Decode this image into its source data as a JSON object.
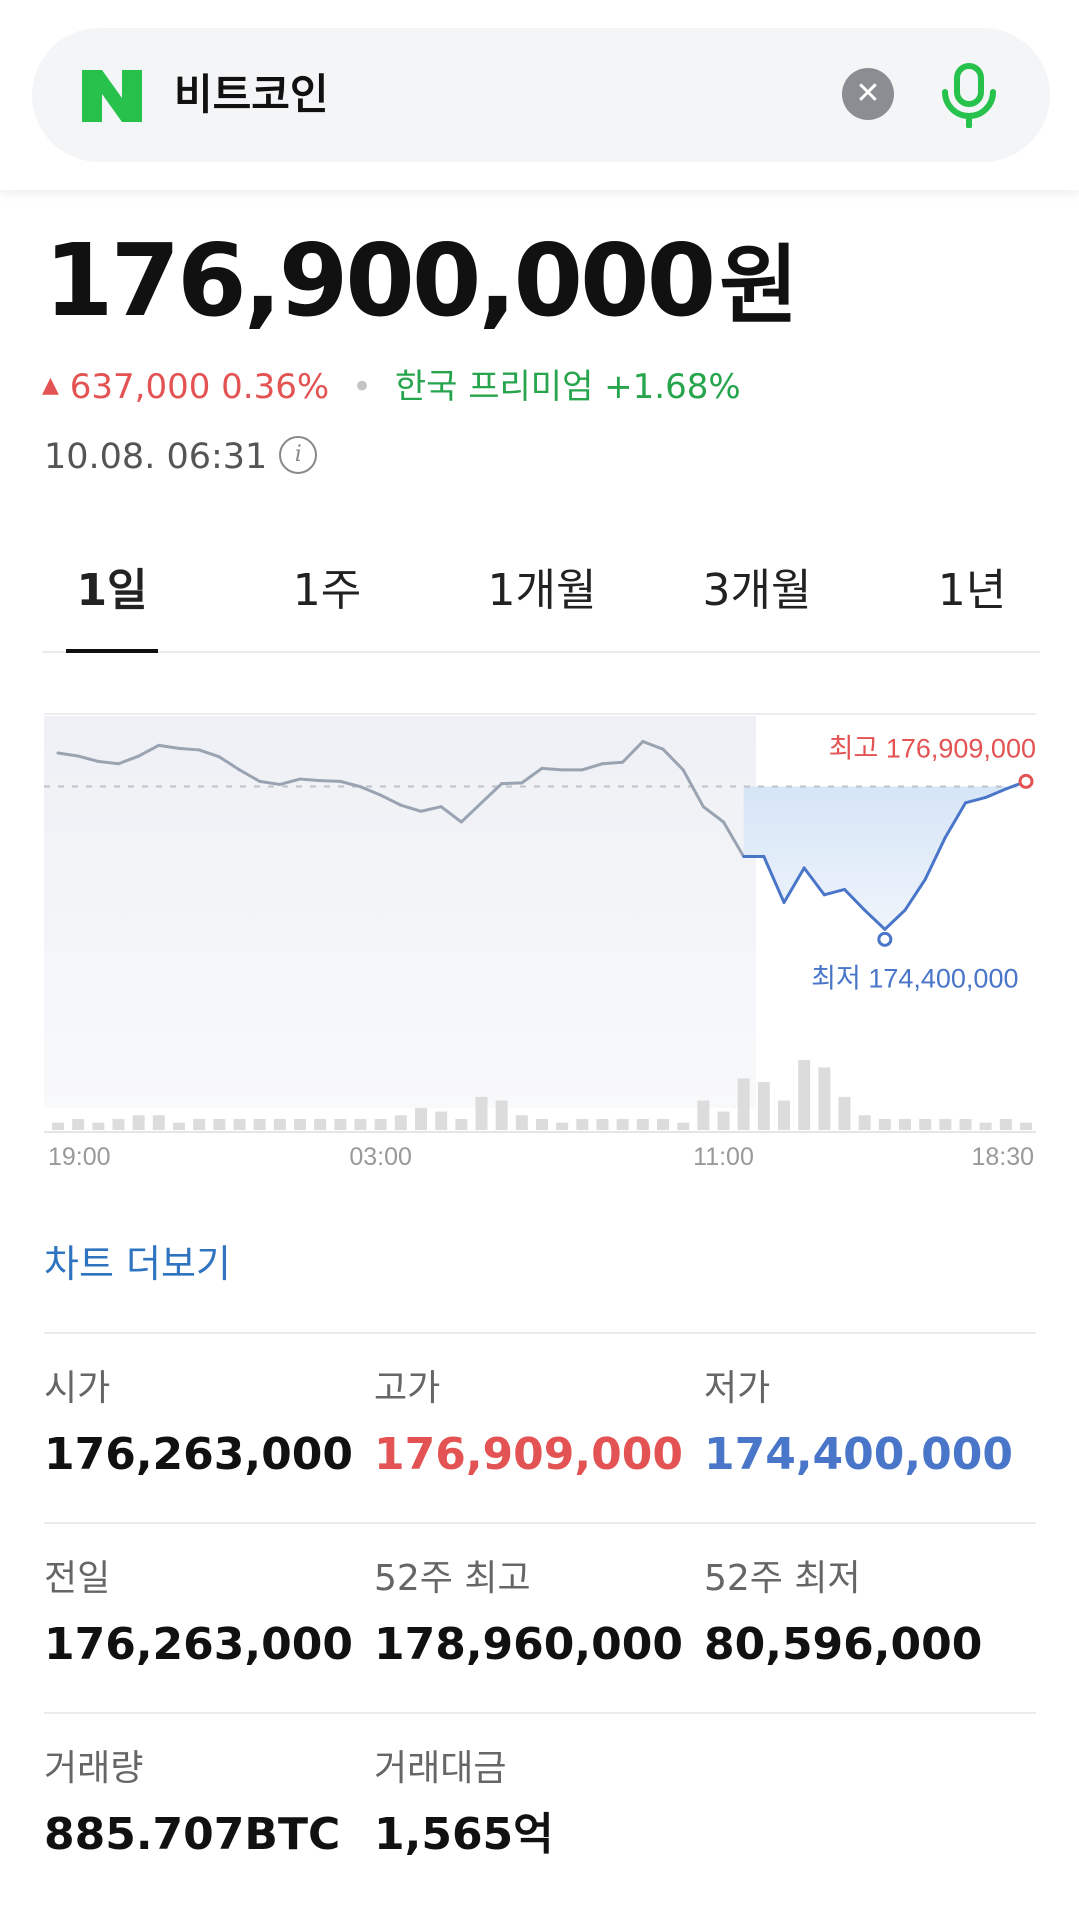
{
  "search": {
    "query": "비트코인"
  },
  "quote": {
    "price": "176,900,000",
    "unit": "원",
    "change": "637,000",
    "change_percent": "0.36%",
    "premium_label": "한국 프리미엄",
    "premium_value": "+1.68%",
    "timestamp": "10.08. 06:31"
  },
  "tabs": [
    {
      "label": "1일",
      "active": true
    },
    {
      "label": "1주",
      "active": false
    },
    {
      "label": "1개월",
      "active": false
    },
    {
      "label": "3개월",
      "active": false
    },
    {
      "label": "1년",
      "active": false
    }
  ],
  "colors": {
    "up": "#e35353",
    "down": "#4a76c9",
    "brand": "#27a54d",
    "line": "#9aa3b1"
  },
  "chart_data": {
    "type": "line",
    "x_ticks": [
      "19:00",
      "03:00",
      "11:00",
      "18:30"
    ],
    "reference_price": 176263000,
    "high_label": "최고 176,909,000",
    "low_label": "최저 174,400,000",
    "price": [
      176700000,
      176660000,
      176590000,
      176560000,
      176660000,
      176800000,
      176760000,
      176740000,
      176650000,
      176480000,
      176330000,
      176290000,
      176360000,
      176340000,
      176330000,
      176260000,
      176150000,
      176020000,
      175940000,
      176000000,
      175800000,
      176050000,
      176300000,
      176310000,
      176500000,
      176480000,
      176480000,
      176560000,
      176580000,
      176850000,
      176750000,
      176480000,
      176000000,
      175800000,
      175350000,
      175350000,
      174750000,
      175200000,
      174850000,
      174920000,
      174650000,
      174400000,
      174650000,
      175050000,
      175600000,
      176050000,
      176120000,
      176230000,
      176330000
    ],
    "volume": [
      2,
      3,
      2,
      3,
      4,
      4,
      2,
      3,
      3,
      3,
      3,
      3,
      3,
      3,
      3,
      3,
      3,
      4,
      6,
      5,
      3,
      9,
      8,
      4,
      3,
      2,
      3,
      3,
      3,
      3,
      3,
      2,
      8,
      5,
      14,
      13,
      8,
      19,
      17,
      9,
      4,
      3,
      3,
      3,
      3,
      3,
      2,
      3,
      2
    ]
  },
  "chart_more": "차트 더보기",
  "stats": [
    [
      {
        "label": "시가",
        "value": "176,263,000",
        "tone": ""
      },
      {
        "label": "고가",
        "value": "176,909,000",
        "tone": "high"
      },
      {
        "label": "저가",
        "value": "174,400,000",
        "tone": "low"
      }
    ],
    [
      {
        "label": "전일",
        "value": "176,263,000",
        "tone": ""
      },
      {
        "label": "52주 최고",
        "value": "178,960,000",
        "tone": ""
      },
      {
        "label": "52주 최저",
        "value": "80,596,000",
        "tone": ""
      }
    ],
    [
      {
        "label": "거래량",
        "value": "885.707BTC",
        "tone": ""
      },
      {
        "label": "거래대금",
        "value": "1,565억",
        "tone": ""
      }
    ]
  ]
}
